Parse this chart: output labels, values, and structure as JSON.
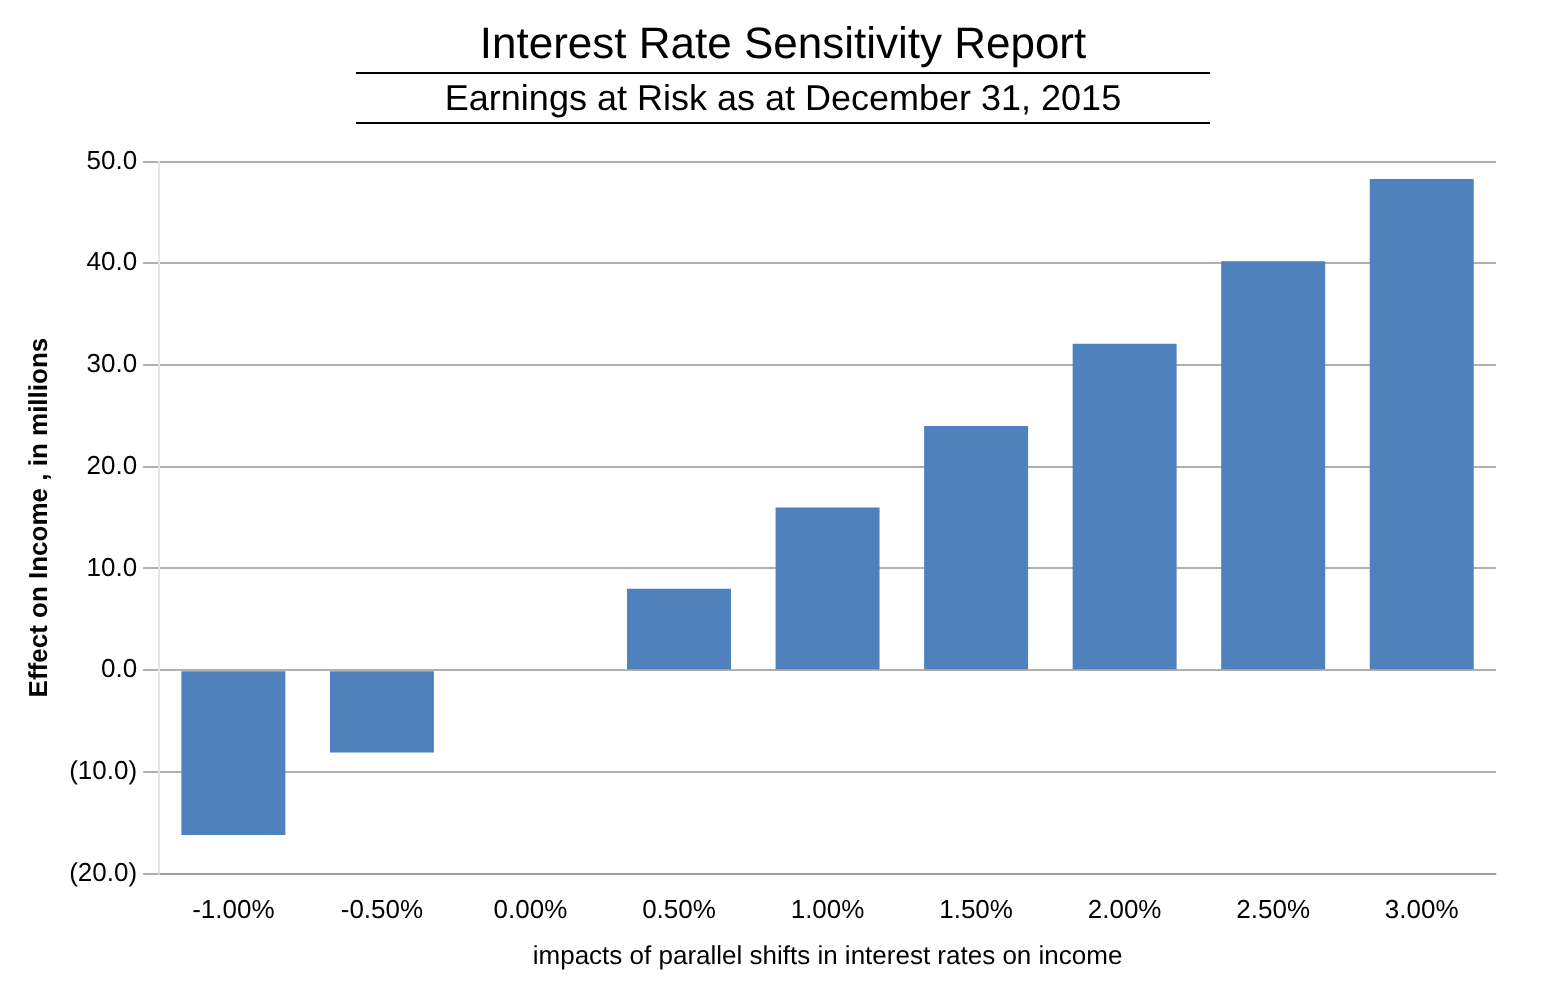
{
  "chart_data": {
    "type": "bar",
    "title": "Interest Rate Sensitivity Report",
    "subtitle": "Earnings at Risk as at December 31, 2015",
    "xlabel": "impacts of parallel shifts in interest rates on income",
    "ylabel": "Effect on Income , in millions",
    "categories": [
      "-1.00%",
      "-0.50%",
      "0.00%",
      "0.50%",
      "1.00%",
      "1.50%",
      "2.00%",
      "2.50%",
      "3.00%"
    ],
    "values": [
      -16.2,
      -8.1,
      0,
      8.0,
      16.0,
      24.0,
      32.1,
      40.2,
      48.3
    ],
    "color": "#4f81bd",
    "ylim": [
      -20,
      50
    ],
    "yticks": [
      {
        "value": -20,
        "label": "(20.0)"
      },
      {
        "value": -10,
        "label": "(10.0)"
      },
      {
        "value": 0,
        "label": "0.0"
      },
      {
        "value": 10,
        "label": "10.0"
      },
      {
        "value": 20,
        "label": "20.0"
      },
      {
        "value": 30,
        "label": "30.0"
      },
      {
        "value": 40,
        "label": "40.0"
      },
      {
        "value": 50,
        "label": "50.0"
      }
    ],
    "grid": "y",
    "legend": false
  }
}
